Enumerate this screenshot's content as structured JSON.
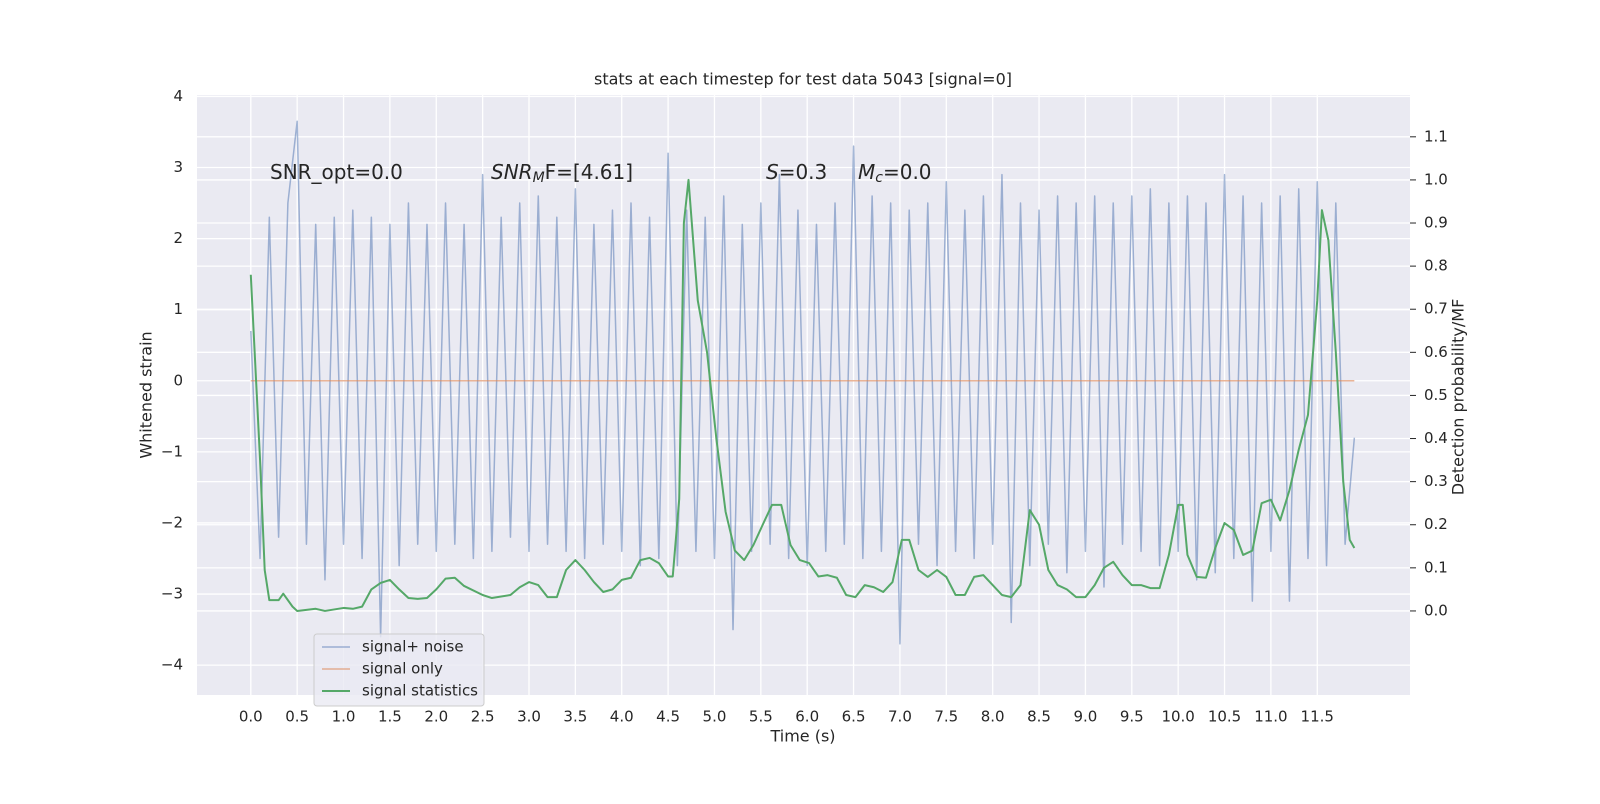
{
  "chart_data": {
    "type": "line",
    "title": "stats at each timestep for test data 5043 [signal=0]",
    "x_label": "Time (s)",
    "y_label": "Whitened strain",
    "y2_label": "Detection probability/MF",
    "annotations": [
      {
        "text": "SNR_opt=0.0"
      },
      {
        "symbol": "SNR",
        "subscript": "M",
        "text": "F=[4.61]"
      },
      {
        "symbol": "S",
        "text": "=0.3"
      },
      {
        "symbol": "M",
        "subscript": "c",
        "text": "=0.0"
      }
    ],
    "xlim": [
      -0.58,
      12.5
    ],
    "ylim": [
      -4.42,
      4.02
    ],
    "y2lim": [
      -0.195,
      1.197
    ],
    "xticks": [
      {
        "value": 0,
        "label": "0.0"
      },
      0.5,
      {
        "value": 1,
        "label": "1.0"
      },
      1.5,
      {
        "value": 2,
        "label": "2.0"
      },
      2.5,
      {
        "value": 3,
        "label": "3.0"
      },
      3.5,
      {
        "value": 4,
        "label": "4.0"
      },
      4.5,
      {
        "value": 5,
        "label": "5.0"
      },
      5.5,
      {
        "value": 6,
        "label": "6.0"
      },
      6.5,
      {
        "value": 7,
        "label": "7.0"
      },
      7.5,
      {
        "value": 8,
        "label": "8.0"
      },
      8.5,
      {
        "value": 9,
        "label": "9.0"
      },
      9.5,
      {
        "value": 10,
        "label": "10.0"
      },
      10.5,
      {
        "value": 11,
        "label": "11.0"
      },
      11.5
    ],
    "yticks": [
      {
        "value": -4,
        "label": "−4"
      },
      {
        "value": -3,
        "label": "−3"
      },
      {
        "value": -2,
        "label": "−2"
      },
      {
        "value": -1,
        "label": "−1"
      },
      0,
      1,
      2,
      3,
      4
    ],
    "y2ticks": [
      {
        "value": 0,
        "label": "0.0"
      },
      0.1,
      0.2,
      0.3,
      0.4,
      0.5,
      0.6,
      0.7,
      0.8,
      0.9,
      {
        "value": 1,
        "label": "1.0"
      },
      1.1
    ],
    "grid": true,
    "legend": "lower left",
    "series": [
      {
        "name": "signal+ noise",
        "color": "#4c72b0",
        "axis": "y",
        "x": [
          0.0,
          0.1,
          0.2,
          0.3,
          0.4,
          0.5,
          0.6,
          0.7,
          0.8,
          0.9,
          1.0,
          1.1,
          1.2,
          1.3,
          1.4,
          1.5,
          1.6,
          1.7,
          1.8,
          1.9,
          2.0,
          2.1,
          2.2,
          2.3,
          2.4,
          2.5,
          2.6,
          2.7,
          2.8,
          2.9,
          3.0,
          3.1,
          3.2,
          3.3,
          3.4,
          3.5,
          3.6,
          3.7,
          3.8,
          3.9,
          4.0,
          4.1,
          4.2,
          4.3,
          4.4,
          4.5,
          4.6,
          4.7,
          4.8,
          4.9,
          5.0,
          5.1,
          5.2,
          5.3,
          5.4,
          5.5,
          5.6,
          5.7,
          5.8,
          5.9,
          6.0,
          6.1,
          6.2,
          6.3,
          6.4,
          6.5,
          6.6,
          6.7,
          6.8,
          6.9,
          7.0,
          7.1,
          7.2,
          7.3,
          7.4,
          7.5,
          7.6,
          7.7,
          7.8,
          7.9,
          8.0,
          8.1,
          8.2,
          8.3,
          8.4,
          8.5,
          8.6,
          8.7,
          8.8,
          8.9,
          9.0,
          9.1,
          9.2,
          9.3,
          9.4,
          9.5,
          9.6,
          9.7,
          9.8,
          9.9,
          10.0,
          10.1,
          10.2,
          10.3,
          10.4,
          10.5,
          10.6,
          10.7,
          10.8,
          10.9,
          11.0,
          11.1,
          11.2,
          11.3,
          11.4,
          11.5,
          11.6,
          11.7,
          11.8,
          11.9
        ],
        "values": [
          0.7,
          -2.5,
          2.3,
          -2.2,
          2.5,
          3.65,
          -2.3,
          2.2,
          -2.8,
          2.3,
          -2.3,
          2.4,
          -2.5,
          2.3,
          -3.6,
          2.2,
          -2.6,
          2.5,
          -2.3,
          2.2,
          -2.4,
          2.5,
          -2.3,
          2.2,
          -2.5,
          2.9,
          -2.4,
          2.3,
          -2.2,
          2.5,
          -2.4,
          2.6,
          -2.3,
          2.3,
          -2.4,
          2.7,
          -2.5,
          2.2,
          -2.3,
          2.4,
          -2.4,
          2.5,
          -2.6,
          2.3,
          -2.5,
          3.2,
          -2.6,
          2.4,
          -2.4,
          2.3,
          -2.5,
          2.6,
          -3.5,
          2.2,
          -2.4,
          2.5,
          -2.3,
          2.9,
          -2.5,
          2.4,
          -2.6,
          2.2,
          -2.4,
          2.5,
          -2.3,
          3.3,
          -2.5,
          2.6,
          -2.4,
          2.5,
          -3.7,
          2.4,
          -2.3,
          2.5,
          -2.6,
          2.8,
          -2.4,
          2.4,
          -2.5,
          2.6,
          -2.3,
          2.9,
          -3.4,
          2.5,
          -2.6,
          2.4,
          -2.3,
          2.6,
          -2.7,
          2.5,
          -2.4,
          2.6,
          -2.9,
          2.5,
          -2.3,
          2.6,
          -2.4,
          2.7,
          -2.6,
          2.5,
          -2.4,
          2.6,
          -2.8,
          2.5,
          -2.7,
          2.9,
          -2.5,
          2.6,
          -3.1,
          2.5,
          -2.4,
          2.6,
          -3.1,
          2.7,
          -2.5,
          2.8,
          -2.6,
          2.5,
          -2.3,
          -0.8
        ]
      },
      {
        "name": "signal only",
        "color": "#dd8452",
        "axis": "y",
        "x": [
          0.0,
          11.9
        ],
        "values": [
          0,
          0
        ]
      },
      {
        "name": "signal statistics",
        "color": "#55a868",
        "axis": "y2",
        "x": [
          0.0,
          0.1,
          0.15,
          0.2,
          0.3,
          0.35,
          0.45,
          0.5,
          0.7,
          0.8,
          1.0,
          1.1,
          1.2,
          1.3,
          1.4,
          1.5,
          1.6,
          1.7,
          1.8,
          1.9,
          2.0,
          2.1,
          2.2,
          2.3,
          2.5,
          2.6,
          2.8,
          2.9,
          3.0,
          3.1,
          3.2,
          3.3,
          3.4,
          3.5,
          3.6,
          3.7,
          3.8,
          3.9,
          4.0,
          4.1,
          4.2,
          4.3,
          4.4,
          4.5,
          4.55,
          4.62,
          4.67,
          4.72,
          4.82,
          4.92,
          5.02,
          5.12,
          5.22,
          5.32,
          5.42,
          5.52,
          5.62,
          5.72,
          5.82,
          5.92,
          6.02,
          6.12,
          6.22,
          6.32,
          6.42,
          6.52,
          6.62,
          6.72,
          6.82,
          6.92,
          7.02,
          7.1,
          7.2,
          7.3,
          7.4,
          7.5,
          7.6,
          7.7,
          7.8,
          7.9,
          8.0,
          8.1,
          8.2,
          8.3,
          8.4,
          8.5,
          8.6,
          8.7,
          8.8,
          8.9,
          9.0,
          9.1,
          9.2,
          9.3,
          9.4,
          9.5,
          9.6,
          9.7,
          9.8,
          9.9,
          10.0,
          10.05,
          10.1,
          10.2,
          10.3,
          10.4,
          10.5,
          10.6,
          10.7,
          10.8,
          10.9,
          11.0,
          11.1,
          11.2,
          11.3,
          11.4,
          11.5,
          11.55,
          11.62,
          11.7,
          11.78,
          11.85,
          11.9
        ],
        "values": [
          0.78,
          0.35,
          0.095,
          0.025,
          0.025,
          0.04,
          0.01,
          0.0,
          0.005,
          0.0,
          0.007,
          0.005,
          0.01,
          0.05,
          0.065,
          0.072,
          0.05,
          0.03,
          0.028,
          0.03,
          0.05,
          0.075,
          0.077,
          0.058,
          0.037,
          0.03,
          0.037,
          0.055,
          0.067,
          0.06,
          0.032,
          0.032,
          0.095,
          0.118,
          0.095,
          0.067,
          0.044,
          0.05,
          0.072,
          0.077,
          0.118,
          0.123,
          0.111,
          0.08,
          0.08,
          0.26,
          0.9,
          1.0,
          0.72,
          0.6,
          0.4,
          0.23,
          0.14,
          0.118,
          0.153,
          0.2,
          0.246,
          0.246,
          0.153,
          0.118,
          0.111,
          0.08,
          0.083,
          0.077,
          0.037,
          0.032,
          0.06,
          0.055,
          0.044,
          0.067,
          0.165,
          0.165,
          0.095,
          0.079,
          0.095,
          0.079,
          0.037,
          0.037,
          0.079,
          0.083,
          0.06,
          0.037,
          0.032,
          0.06,
          0.234,
          0.2,
          0.095,
          0.06,
          0.05,
          0.032,
          0.032,
          0.06,
          0.1,
          0.114,
          0.083,
          0.06,
          0.06,
          0.053,
          0.053,
          0.13,
          0.246,
          0.246,
          0.13,
          0.079,
          0.077,
          0.146,
          0.204,
          0.188,
          0.13,
          0.14,
          0.25,
          0.258,
          0.21,
          0.28,
          0.374,
          0.455,
          0.72,
          0.93,
          0.86,
          0.6,
          0.3,
          0.165,
          0.146
        ]
      }
    ]
  }
}
